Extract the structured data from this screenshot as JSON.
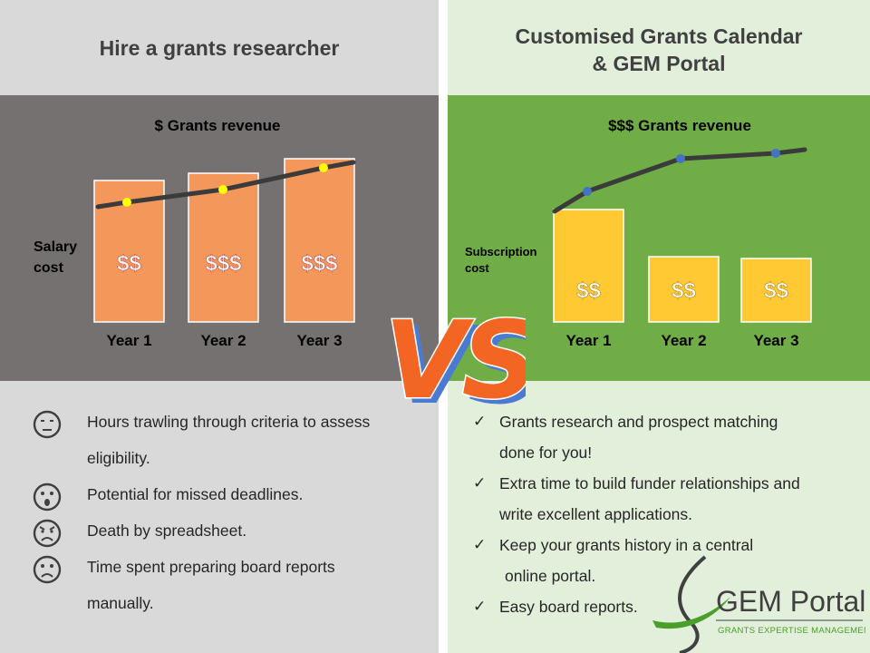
{
  "left": {
    "heading": "Hire a grants researcher",
    "bullets": [
      {
        "icon": "neutral-face-icon",
        "lines": [
          "Hours trawling through criteria to assess",
          "eligibility."
        ]
      },
      {
        "icon": "surprised-face-icon",
        "lines": [
          "Potential for missed deadlines."
        ]
      },
      {
        "icon": "angry-face-icon",
        "lines": [
          "Death by spreadsheet."
        ]
      },
      {
        "icon": "sad-face-icon",
        "lines": [
          "Time spent preparing board reports",
          "manually."
        ]
      }
    ]
  },
  "right": {
    "heading_line1": "Customised Grants Calendar",
    "heading_line2": "& GEM Portal",
    "bullets": [
      {
        "lines": [
          "Grants research and prospect matching",
          "done for you!"
        ]
      },
      {
        "lines": [
          "Extra time to build funder relationships and",
          "write excellent applications."
        ]
      },
      {
        "lines": [
          "Keep your grants history in a central",
          "online portal."
        ]
      },
      {
        "lines": [
          "Easy board reports."
        ]
      }
    ]
  },
  "vs_text": "VS",
  "logo": {
    "name": "GEM Portal",
    "tagline": "GRANTS EXPERTISE MANAGEMENT"
  },
  "colors": {
    "left_bg": "#d9d9d9",
    "right_bg": "#e2efda",
    "left_chart_bg": "#767171",
    "right_chart_bg": "#70ad47",
    "orange_bar": "#f4975a",
    "yellow_bar": "#ffc933",
    "trend_line": "#3b3b3b",
    "left_marker": "#ffff00",
    "right_marker": "#4472c4",
    "vs_fill": "#f26522",
    "vs_shadow": "#4a7bd0"
  },
  "chart_data": [
    {
      "type": "bar",
      "title": "$ Grants revenue",
      "ylabel": "Salary cost",
      "categories": [
        "Year 1",
        "Year 2",
        "Year 3"
      ],
      "values": [
        0.78,
        0.82,
        0.9
      ],
      "bar_labels": [
        "$$",
        "$$$",
        "$$$"
      ],
      "line": {
        "values": [
          0.66,
          0.73,
          0.85
        ]
      },
      "ylim": [
        0,
        1
      ]
    },
    {
      "type": "bar",
      "title": "$$$ Grants revenue",
      "ylabel": "Subscription cost",
      "categories": [
        "Year 1",
        "Year 2",
        "Year 3"
      ],
      "values": [
        0.62,
        0.36,
        0.35
      ],
      "bar_labels": [
        "$$",
        "$$",
        "$$"
      ],
      "line": {
        "values": [
          0.72,
          0.9,
          0.93
        ]
      },
      "ylim": [
        0,
        1
      ]
    }
  ]
}
